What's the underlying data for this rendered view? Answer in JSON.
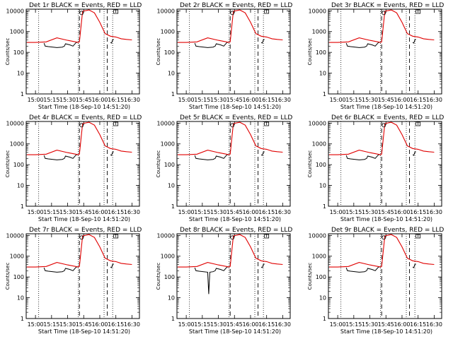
{
  "chart_data": {
    "type": "line",
    "layout": "3x3 grid",
    "xlabel": "Start Time (18-Sep-10 14:51:20)",
    "ylabel": "Counts/sec",
    "yscale": "log",
    "ylim": [
      1,
      12000
    ],
    "xlim": [
      "14:51:20",
      "16:37"
    ],
    "x_ticks": [
      "15:00",
      "15:15",
      "15:30",
      "15:45",
      "16:00",
      "16:15",
      "16:30"
    ],
    "y_ticks": [
      "1",
      "10",
      "100",
      "1000",
      "10000"
    ],
    "series_colors": {
      "events": "#000000",
      "lld": "#e00000"
    },
    "dotted_lines_at": [
      "15:03",
      "15:40",
      "16:04",
      "16:12"
    ],
    "dashed_lines_at": [
      "15:41",
      "16:07"
    ],
    "panels": [
      {
        "title": "Det 1r BLACK = Events, RED = LLD",
        "red_x": [
          "14:52",
          "15:00",
          "15:10",
          "15:20",
          "15:30",
          "15:40",
          "15:41",
          "15:44",
          "15:50",
          "15:55",
          "16:00",
          "16:05",
          "16:10",
          "16:15",
          "16:20",
          "16:25",
          "16:30"
        ],
        "red_y": [
          300,
          300,
          320,
          500,
          380,
          300,
          320,
          9500,
          11000,
          8000,
          2800,
          800,
          600,
          550,
          450,
          420,
          400
        ],
        "black_x": [
          "15:08",
          "15:09",
          "15:12",
          "15:20",
          "15:25",
          "15:27",
          "15:28",
          "15:32",
          "15:35",
          "15:38",
          "15:40"
        ],
        "black_y": [
          280,
          200,
          190,
          170,
          180,
          200,
          260,
          230,
          200,
          300,
          310
        ],
        "black_x2": [
          "16:10",
          "16:11",
          "16:12",
          "16:13"
        ],
        "black_y2": [
          300,
          280,
          400,
          420
        ]
      },
      {
        "title": "Det 2r BLACK = Events, RED = LLD",
        "red_x": [
          "14:52",
          "15:00",
          "15:10",
          "15:20",
          "15:30",
          "15:40",
          "15:41",
          "15:44",
          "15:50",
          "15:55",
          "16:00",
          "16:05",
          "16:10",
          "16:15",
          "16:20",
          "16:25",
          "16:30"
        ],
        "red_y": [
          300,
          300,
          320,
          500,
          380,
          300,
          320,
          9500,
          11000,
          8000,
          2800,
          800,
          600,
          550,
          450,
          420,
          400
        ],
        "black_x": [
          "15:08",
          "15:09",
          "15:12",
          "15:20",
          "15:25",
          "15:27",
          "15:28",
          "15:32",
          "15:35",
          "15:38",
          "15:40"
        ],
        "black_y": [
          280,
          200,
          190,
          170,
          180,
          200,
          260,
          230,
          200,
          300,
          310
        ],
        "black_x2": [
          "16:10",
          "16:11",
          "16:12",
          "16:13"
        ],
        "black_y2": [
          300,
          280,
          400,
          420
        ]
      },
      {
        "title": "Det 3r BLACK = Events, RED = LLD",
        "red_x": [
          "14:52",
          "15:00",
          "15:10",
          "15:20",
          "15:30",
          "15:40",
          "15:41",
          "15:44",
          "15:50",
          "15:55",
          "16:00",
          "16:05",
          "16:10",
          "16:15",
          "16:20",
          "16:25",
          "16:30"
        ],
        "red_y": [
          300,
          300,
          320,
          500,
          380,
          300,
          320,
          9500,
          11000,
          8000,
          2800,
          800,
          600,
          550,
          450,
          420,
          400
        ],
        "black_x": [
          "15:08",
          "15:09",
          "15:12",
          "15:20",
          "15:25",
          "15:27",
          "15:28",
          "15:32",
          "15:35",
          "15:38",
          "15:40"
        ],
        "black_y": [
          280,
          200,
          190,
          170,
          180,
          200,
          260,
          230,
          200,
          300,
          310
        ],
        "black_x2": [
          "16:10",
          "16:11",
          "16:12",
          "16:13"
        ],
        "black_y2": [
          300,
          280,
          400,
          420
        ]
      },
      {
        "title": "Det 4r BLACK = Events, RED = LLD",
        "red_x": [
          "14:52",
          "15:00",
          "15:10",
          "15:20",
          "15:30",
          "15:40",
          "15:41",
          "15:44",
          "15:50",
          "15:55",
          "16:00",
          "16:05",
          "16:10",
          "16:15",
          "16:20",
          "16:25",
          "16:30"
        ],
        "red_y": [
          300,
          300,
          320,
          500,
          380,
          300,
          320,
          9500,
          11000,
          8000,
          2800,
          800,
          600,
          550,
          450,
          420,
          400
        ],
        "black_x": [
          "15:08",
          "15:09",
          "15:12",
          "15:20",
          "15:25",
          "15:27",
          "15:28",
          "15:32",
          "15:35",
          "15:38",
          "15:40"
        ],
        "black_y": [
          280,
          200,
          190,
          170,
          180,
          200,
          260,
          230,
          200,
          300,
          310
        ],
        "black_x2": [
          "16:10",
          "16:11",
          "16:12",
          "16:13"
        ],
        "black_y2": [
          300,
          280,
          400,
          420
        ]
      },
      {
        "title": "Det 5r BLACK = Events, RED = LLD",
        "red_x": [
          "14:52",
          "15:00",
          "15:10",
          "15:20",
          "15:30",
          "15:40",
          "15:41",
          "15:44",
          "15:50",
          "15:55",
          "16:00",
          "16:05",
          "16:10",
          "16:15",
          "16:20",
          "16:25",
          "16:30"
        ],
        "red_y": [
          300,
          300,
          320,
          500,
          380,
          300,
          320,
          9500,
          11000,
          8000,
          2800,
          800,
          600,
          550,
          450,
          420,
          400
        ],
        "black_x": [
          "15:08",
          "15:09",
          "15:12",
          "15:20",
          "15:25",
          "15:27",
          "15:28",
          "15:32",
          "15:35",
          "15:38",
          "15:40"
        ],
        "black_y": [
          280,
          200,
          190,
          170,
          180,
          200,
          260,
          230,
          200,
          300,
          310
        ],
        "black_x2": [
          "16:10",
          "16:11",
          "16:12",
          "16:13"
        ],
        "black_y2": [
          300,
          280,
          400,
          420
        ]
      },
      {
        "title": "Det 6r BLACK = Events, RED = LLD",
        "red_x": [
          "14:52",
          "15:00",
          "15:10",
          "15:20",
          "15:30",
          "15:40",
          "15:41",
          "15:44",
          "15:50",
          "15:55",
          "16:00",
          "16:05",
          "16:10",
          "16:15",
          "16:20",
          "16:25",
          "16:30"
        ],
        "red_y": [
          300,
          300,
          320,
          500,
          380,
          300,
          320,
          9500,
          11000,
          8000,
          2800,
          800,
          600,
          550,
          450,
          420,
          400
        ],
        "black_x": [
          "15:08",
          "15:09",
          "15:12",
          "15:20",
          "15:25",
          "15:27",
          "15:28",
          "15:32",
          "15:35",
          "15:38",
          "15:40"
        ],
        "black_y": [
          280,
          200,
          190,
          170,
          180,
          200,
          260,
          230,
          200,
          300,
          310
        ],
        "black_x2": [
          "16:10",
          "16:11",
          "16:12",
          "16:13"
        ],
        "black_y2": [
          300,
          280,
          400,
          420
        ]
      },
      {
        "title": "Det 7r BLACK = Events, RED = LLD",
        "red_x": [
          "14:52",
          "15:00",
          "15:10",
          "15:20",
          "15:30",
          "15:40",
          "15:41",
          "15:44",
          "15:50",
          "15:55",
          "16:00",
          "16:05",
          "16:10",
          "16:15",
          "16:20",
          "16:25",
          "16:30"
        ],
        "red_y": [
          300,
          300,
          320,
          500,
          380,
          300,
          320,
          9500,
          11000,
          8000,
          2800,
          800,
          600,
          550,
          450,
          420,
          400
        ],
        "black_x": [
          "15:08",
          "15:09",
          "15:12",
          "15:20",
          "15:25",
          "15:27",
          "15:28",
          "15:32",
          "15:35",
          "15:38",
          "15:40"
        ],
        "black_y": [
          280,
          200,
          190,
          170,
          180,
          200,
          260,
          230,
          200,
          300,
          310
        ],
        "black_x2": [
          "16:10",
          "16:11",
          "16:12",
          "16:13"
        ],
        "black_y2": [
          300,
          280,
          400,
          420
        ]
      },
      {
        "title": "Det 8r BLACK = Events, RED = LLD",
        "red_x": [
          "14:52",
          "15:00",
          "15:10",
          "15:20",
          "15:30",
          "15:40",
          "15:41",
          "15:44",
          "15:50",
          "15:55",
          "16:00",
          "16:05",
          "16:10",
          "16:15",
          "16:20",
          "16:25",
          "16:30"
        ],
        "red_y": [
          300,
          300,
          320,
          500,
          380,
          300,
          320,
          9500,
          11000,
          8000,
          2800,
          800,
          600,
          550,
          450,
          420,
          400
        ],
        "black_x": [
          "15:08",
          "15:09",
          "15:12",
          "15:20",
          "15:21",
          "15:22",
          "15:25",
          "15:27",
          "15:28",
          "15:32",
          "15:35",
          "15:38",
          "15:40"
        ],
        "black_y": [
          280,
          200,
          190,
          170,
          15,
          170,
          180,
          200,
          260,
          230,
          200,
          300,
          310
        ],
        "black_x2": [
          "16:10",
          "16:11",
          "16:12",
          "16:13"
        ],
        "black_y2": [
          300,
          280,
          400,
          420
        ]
      },
      {
        "title": "Det 9r BLACK = Events, RED = LLD",
        "red_x": [
          "14:52",
          "15:00",
          "15:10",
          "15:20",
          "15:30",
          "15:40",
          "15:41",
          "15:44",
          "15:50",
          "15:55",
          "16:00",
          "16:05",
          "16:10",
          "16:15",
          "16:20",
          "16:25",
          "16:30"
        ],
        "red_y": [
          300,
          300,
          320,
          500,
          380,
          300,
          320,
          9500,
          11000,
          8000,
          2800,
          800,
          600,
          550,
          450,
          420,
          400
        ],
        "black_x": [
          "15:08",
          "15:09",
          "15:12",
          "15:20",
          "15:25",
          "15:27",
          "15:28",
          "15:32",
          "15:35",
          "15:38",
          "15:40"
        ],
        "black_y": [
          280,
          200,
          190,
          170,
          180,
          200,
          260,
          230,
          200,
          300,
          310
        ],
        "black_x2": [
          "16:10",
          "16:11",
          "16:12",
          "16:13"
        ],
        "black_y2": [
          300,
          280,
          400,
          420
        ]
      }
    ]
  }
}
